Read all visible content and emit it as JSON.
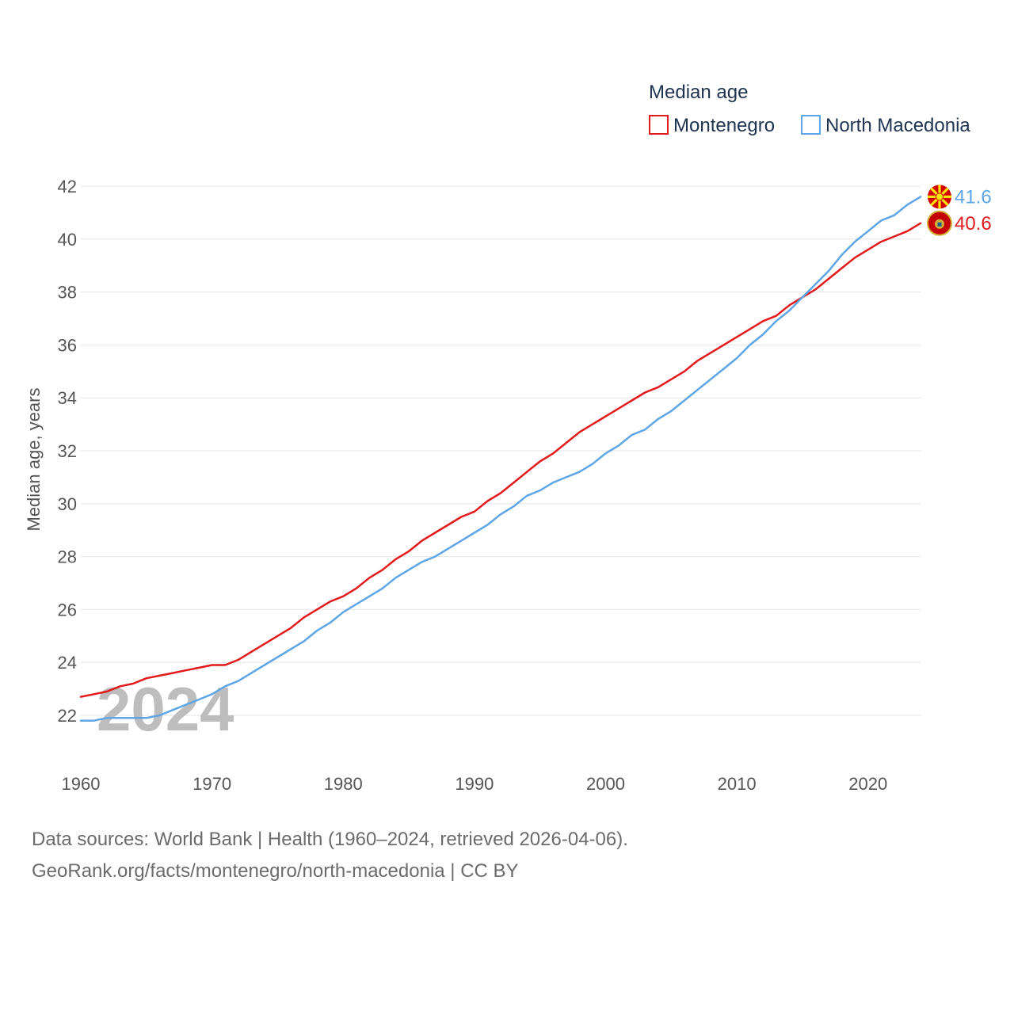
{
  "chart_data": {
    "type": "line",
    "title": "Median age",
    "ylabel": "Median age, years",
    "xlabel": "",
    "xlim": [
      1960,
      2024
    ],
    "ylim": [
      21,
      42.5
    ],
    "yticks": [
      22,
      24,
      26,
      28,
      30,
      32,
      34,
      36,
      38,
      40,
      42
    ],
    "xticks": [
      1960,
      1970,
      1980,
      1990,
      2000,
      2010,
      2020
    ],
    "grid": true,
    "legend_position": "top-right",
    "current_year": "2024",
    "x": [
      1960,
      1961,
      1962,
      1963,
      1964,
      1965,
      1966,
      1967,
      1968,
      1969,
      1970,
      1971,
      1972,
      1973,
      1974,
      1975,
      1976,
      1977,
      1978,
      1979,
      1980,
      1981,
      1982,
      1983,
      1984,
      1985,
      1986,
      1987,
      1988,
      1989,
      1990,
      1991,
      1992,
      1993,
      1994,
      1995,
      1996,
      1997,
      1998,
      1999,
      2000,
      2001,
      2002,
      2003,
      2004,
      2005,
      2006,
      2007,
      2008,
      2009,
      2010,
      2011,
      2012,
      2013,
      2014,
      2015,
      2016,
      2017,
      2018,
      2019,
      2020,
      2021,
      2022,
      2023,
      2024
    ],
    "series": [
      {
        "name": "Montenegro",
        "color": "#e31a1c",
        "end_label": "40.6",
        "flag_icon": "montenegro-flag-icon",
        "values": [
          22.7,
          22.8,
          22.9,
          23.1,
          23.2,
          23.4,
          23.5,
          23.6,
          23.7,
          23.8,
          23.9,
          23.9,
          24.1,
          24.4,
          24.7,
          25.0,
          25.3,
          25.7,
          26.0,
          26.3,
          26.5,
          26.8,
          27.2,
          27.5,
          27.9,
          28.2,
          28.6,
          28.9,
          29.2,
          29.5,
          29.7,
          30.1,
          30.4,
          30.8,
          31.2,
          31.6,
          31.9,
          32.3,
          32.7,
          33.0,
          33.3,
          33.6,
          33.9,
          34.2,
          34.4,
          34.7,
          35.0,
          35.4,
          35.7,
          36.0,
          36.3,
          36.6,
          36.9,
          37.1,
          37.5,
          37.8,
          38.1,
          38.5,
          38.9,
          39.3,
          39.6,
          39.9,
          40.1,
          40.3,
          40.6
        ]
      },
      {
        "name": "North Macedonia",
        "color": "#5ea6e6",
        "end_label": "41.6",
        "flag_icon": "north-macedonia-flag-icon",
        "values": [
          21.8,
          21.8,
          21.9,
          21.9,
          21.9,
          21.9,
          22.0,
          22.2,
          22.4,
          22.6,
          22.8,
          23.1,
          23.3,
          23.6,
          23.9,
          24.2,
          24.5,
          24.8,
          25.2,
          25.5,
          25.9,
          26.2,
          26.5,
          26.8,
          27.2,
          27.5,
          27.8,
          28.0,
          28.3,
          28.6,
          28.9,
          29.2,
          29.6,
          29.9,
          30.3,
          30.5,
          30.8,
          31.0,
          31.2,
          31.5,
          31.9,
          32.2,
          32.6,
          32.8,
          33.2,
          33.5,
          33.9,
          34.3,
          34.7,
          35.1,
          35.5,
          36.0,
          36.4,
          36.9,
          37.3,
          37.8,
          38.3,
          38.8,
          39.4,
          39.9,
          40.3,
          40.7,
          40.9,
          41.3,
          41.6
        ]
      }
    ]
  },
  "source": {
    "line1": "Data sources: World Bank | Health (1960–2024, retrieved 2026-04-06).",
    "line2": "GeoRank.org/facts/montenegro/north-macedonia | CC BY"
  }
}
